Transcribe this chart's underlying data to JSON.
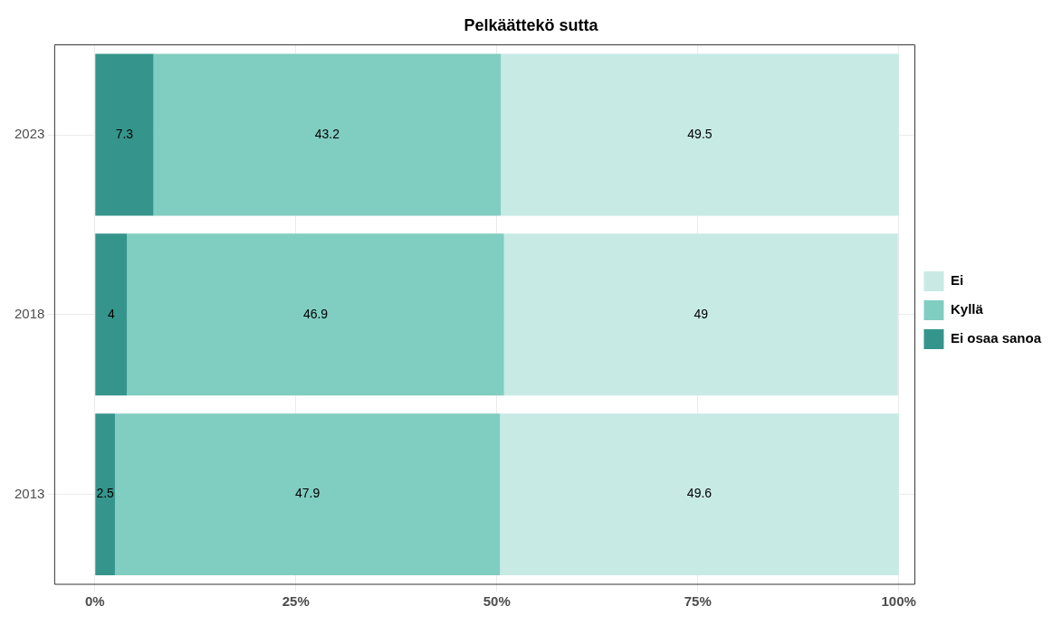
{
  "chart_data": {
    "type": "bar",
    "orientation": "horizontal",
    "stacked": true,
    "title": "Pelkäättekö sutta",
    "categories": [
      "2023",
      "2018",
      "2013"
    ],
    "series": [
      {
        "name": "Ei osaa sanoa",
        "color": "#35958c",
        "values": [
          7.3,
          4,
          2.5
        ]
      },
      {
        "name": "Kyllä",
        "color": "#80cdc1",
        "values": [
          43.2,
          46.9,
          47.9
        ]
      },
      {
        "name": "Ei",
        "color": "#c7eae5",
        "values": [
          49.5,
          49,
          49.6
        ]
      }
    ],
    "xlim": [
      -5,
      102
    ],
    "xticks": [
      {
        "value": 0,
        "label": "0%"
      },
      {
        "value": 25,
        "label": "25%"
      },
      {
        "value": 50,
        "label": "50%"
      },
      {
        "value": 75,
        "label": "75%"
      },
      {
        "value": 100,
        "label": "100%"
      }
    ],
    "data_labels": true,
    "grid": true,
    "legend": "right"
  }
}
